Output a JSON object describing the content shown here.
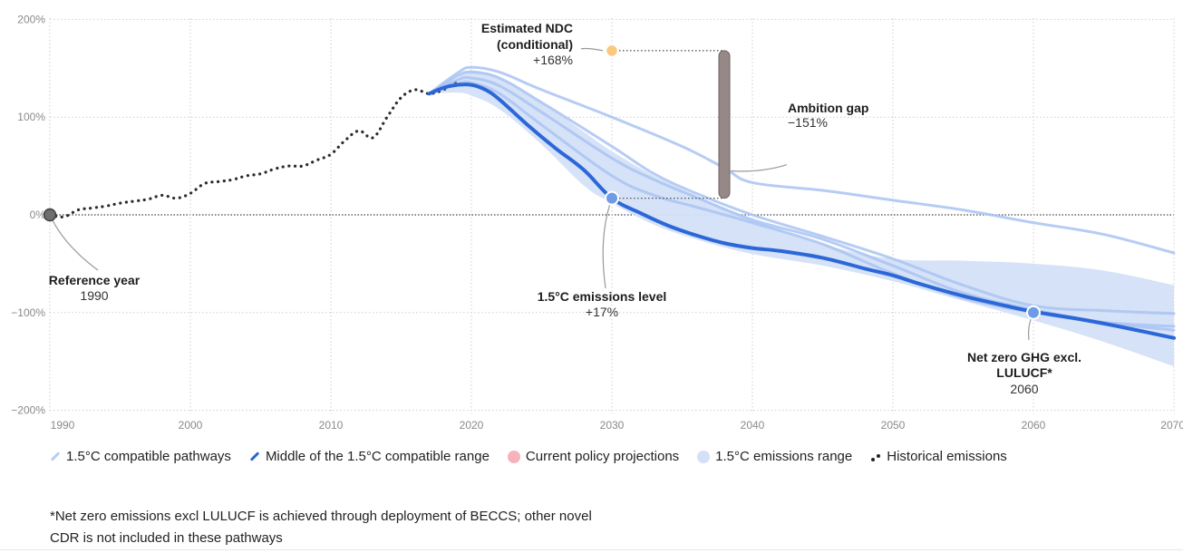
{
  "chart_data": {
    "type": "line",
    "title": "",
    "xlabel": "",
    "ylabel": "",
    "xlim": [
      1990,
      2070
    ],
    "ylim": [
      -200,
      200
    ],
    "x_ticks": [
      1990,
      2000,
      2010,
      2020,
      2030,
      2040,
      2050,
      2060,
      2070
    ],
    "x_tick_labels": [
      "1990",
      "2000",
      "2010",
      "2020",
      "2030",
      "2040",
      "2050",
      "2060",
      "2070"
    ],
    "y_ticks": [
      200,
      100,
      0,
      -100,
      -200
    ],
    "y_tick_labels": [
      "200%",
      "100%",
      "0%",
      "−100%",
      "−200%"
    ],
    "grid": true,
    "legend_position": "bottom",
    "colors": {
      "historical": "#2b2b2b",
      "pathway": "#a9c3f2",
      "middle": "#2c67d8",
      "range_fill": "#d3e0f7",
      "ndc": "#fcc77f",
      "current_policy": "#f7b3bb",
      "gap_bar": "#968887",
      "marker_blue": "#6f9be6",
      "reference_marker": "#6e6e6e"
    },
    "series": [
      {
        "name": "Historical emissions",
        "style": "dotted",
        "x": [
          1990,
          1991,
          1992,
          1993,
          1994,
          1995,
          1996,
          1997,
          1998,
          1999,
          2000,
          2001,
          2002,
          2003,
          2004,
          2005,
          2006,
          2007,
          2008,
          2009,
          2010,
          2011,
          2012,
          2013,
          2014,
          2015,
          2016,
          2017,
          2018,
          2019
        ],
        "values": [
          0,
          -2,
          5,
          7,
          9,
          12,
          14,
          16,
          20,
          17,
          22,
          32,
          34,
          36,
          40,
          42,
          47,
          50,
          50,
          56,
          62,
          76,
          86,
          79,
          100,
          120,
          128,
          124,
          128,
          136
        ]
      },
      {
        "name": "Middle of the 1.5°C compatible range",
        "x": [
          2017,
          2018,
          2019,
          2020,
          2021,
          2022,
          2024,
          2026,
          2028,
          2030,
          2032,
          2034,
          2036,
          2038,
          2040,
          2042,
          2045,
          2048,
          2050,
          2052,
          2055,
          2058,
          2060,
          2063,
          2066,
          2070
        ],
        "values": [
          124,
          130,
          133,
          133,
          128,
          118,
          92,
          68,
          46,
          17,
          2,
          -11,
          -21,
          -29,
          -34,
          -37,
          -44,
          -55,
          -62,
          -71,
          -83,
          -93,
          -99,
          -106,
          -114,
          -126
        ]
      },
      {
        "name": "1.5°C compatible pathway A",
        "x": [
          2017,
          2019,
          2020,
          2022,
          2025,
          2030,
          2035,
          2038,
          2040,
          2045,
          2050,
          2055,
          2060,
          2065,
          2070
        ],
        "values": [
          124,
          145,
          151,
          146,
          128,
          100,
          70,
          48,
          33,
          25,
          15,
          5,
          -8,
          -20,
          -39
        ]
      },
      {
        "name": "1.5°C compatible pathway B",
        "x": [
          2017,
          2019,
          2020,
          2022,
          2025,
          2030,
          2033,
          2036,
          2040,
          2045,
          2050,
          2055,
          2060,
          2065,
          2070
        ],
        "values": [
          124,
          142,
          146,
          140,
          115,
          70,
          42,
          22,
          0,
          -22,
          -45,
          -72,
          -93,
          -98,
          -101
        ]
      },
      {
        "name": "1.5°C compatible pathway C",
        "x": [
          2017,
          2019,
          2020,
          2022,
          2025,
          2030,
          2033,
          2036,
          2040,
          2045,
          2050,
          2055,
          2060,
          2065,
          2070
        ],
        "values": [
          124,
          138,
          140,
          132,
          105,
          58,
          36,
          18,
          -5,
          -25,
          -52,
          -80,
          -97,
          -110,
          -118
        ]
      },
      {
        "name": "1.5°C compatible pathway D",
        "x": [
          2017,
          2019,
          2020,
          2022,
          2025,
          2030,
          2033,
          2036,
          2040,
          2045,
          2050,
          2055,
          2060,
          2065,
          2070
        ],
        "values": [
          124,
          134,
          135,
          124,
          92,
          40,
          20,
          8,
          -8,
          -30,
          -60,
          -85,
          -100,
          -110,
          -114
        ]
      }
    ],
    "range": {
      "name": "1.5°C emissions range",
      "x": [
        2017,
        2019,
        2020,
        2022,
        2025,
        2028,
        2030,
        2033,
        2036,
        2040,
        2045,
        2050,
        2055,
        2060,
        2065,
        2070
      ],
      "upper": [
        124,
        140,
        148,
        140,
        115,
        85,
        65,
        40,
        20,
        -5,
        -30,
        -45,
        -47,
        -50,
        -57,
        -72
      ],
      "lower": [
        124,
        125,
        122,
        108,
        72,
        30,
        12,
        -10,
        -25,
        -40,
        -52,
        -68,
        -88,
        -108,
        -130,
        -155
      ]
    },
    "points": [
      {
        "name": "Reference year",
        "x": 1990,
        "y": 0
      },
      {
        "name": "Estimated NDC (conditional)",
        "x": 2030,
        "y": 168
      },
      {
        "name": "1.5°C emissions level",
        "x": 2030,
        "y": 17
      },
      {
        "name": "Net zero GHG excl. LULUCF",
        "x": 2060,
        "y": -100
      }
    ],
    "ambition_gap": {
      "x": 2038,
      "from": 168,
      "to": 17,
      "value": "−151%"
    },
    "annotations": {
      "reference": {
        "title": "Reference year",
        "value": "1990"
      },
      "ndc": {
        "title_line1": "Estimated NDC",
        "title_line2": "(conditional)",
        "value": "+168%"
      },
      "gap": {
        "title": "Ambition gap",
        "value": "−151%"
      },
      "level": {
        "title": "1.5°C emissions level",
        "value": "+17%"
      },
      "netzero": {
        "title_line1": "Net zero GHG excl.",
        "title_line2": "LULUCF*",
        "value": "2060"
      }
    },
    "legend": [
      {
        "label": "1.5°C compatible pathways",
        "swatch": "line",
        "color": "#a9c3f2"
      },
      {
        "label": "Middle of the 1.5°C compatible range",
        "swatch": "line",
        "color": "#2c67d8"
      },
      {
        "label": "Current policy projections",
        "swatch": "dot",
        "color": "#f7b3bb"
      },
      {
        "label": "1.5°C emissions range",
        "swatch": "dot",
        "color": "#d3e0f7"
      },
      {
        "label": "Historical emissions",
        "swatch": "dots",
        "color": "#222222"
      }
    ]
  },
  "footnote": {
    "line1": "*Net zero emissions excl LULUCF is achieved through deployment of BECCS; other novel",
    "line2": "CDR is not included in these pathways"
  }
}
